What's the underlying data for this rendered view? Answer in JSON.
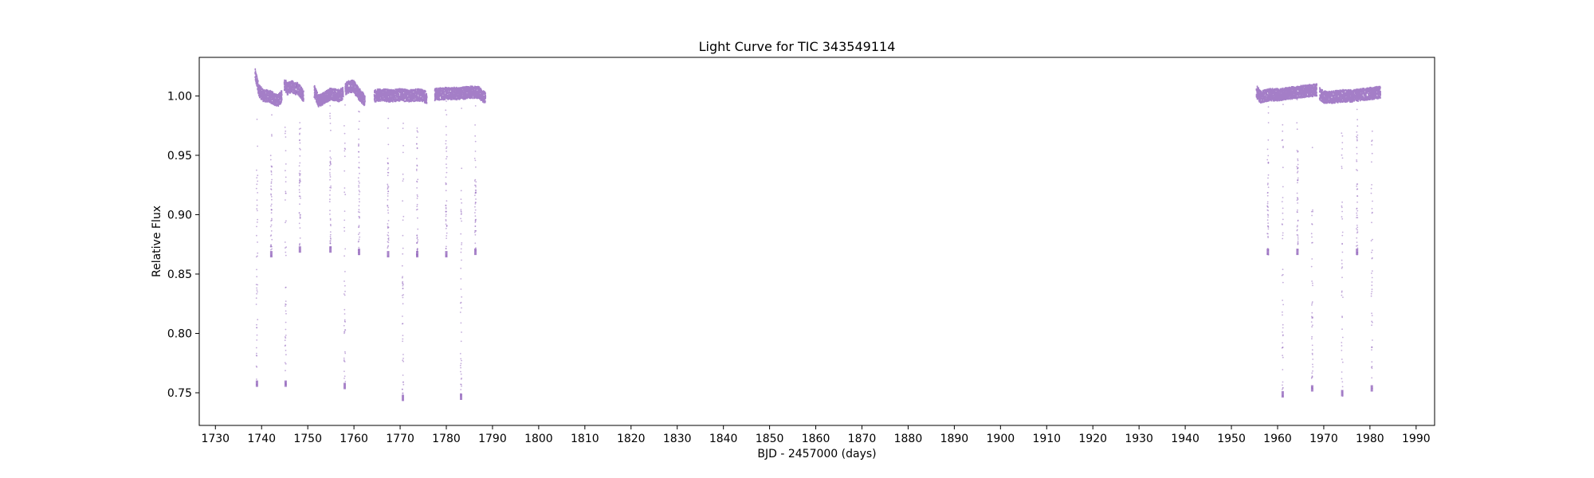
{
  "chart_data": {
    "type": "scatter",
    "title": "Light Curve for TIC 343549114",
    "xlabel": "BJD - 2457000 (days)",
    "ylabel": "Relative Flux",
    "xlim": [
      1726.5,
      1994
    ],
    "ylim": [
      0.7225,
      1.0325
    ],
    "xticks": [
      1730,
      1740,
      1750,
      1760,
      1770,
      1780,
      1790,
      1800,
      1810,
      1820,
      1830,
      1840,
      1850,
      1860,
      1870,
      1880,
      1890,
      1900,
      1910,
      1920,
      1930,
      1940,
      1950,
      1960,
      1970,
      1980,
      1990
    ],
    "yticks": [
      0.75,
      0.8,
      0.85,
      0.9,
      0.95,
      1.0
    ],
    "yticklabels": [
      "0.75",
      "0.80",
      "0.85",
      "0.90",
      "0.95",
      "1.00"
    ],
    "grid": false,
    "legend": "none",
    "marker_color": "#9467bd",
    "series": [
      {
        "segments": [
          {
            "x": [
              1738.6,
              1739.5,
              1740.5,
              1741.5,
              1742.5,
              1743.5,
              1744.4
            ],
            "y": [
              1.018,
              1.004,
              1.0,
              1.0,
              0.998,
              0.996,
              1.0
            ]
          },
          {
            "x": [
              1744.9,
              1745.6,
              1746.6,
              1747.5
            ],
            "y": [
              1.01,
              1.006,
              1.008,
              1.006
            ]
          },
          {
            "x": [
              1747.6,
              1748.3,
              1749.1
            ],
            "y": [
              1.008,
              1.004,
              1.0
            ]
          },
          {
            "x": [
              1751.4,
              1752.3,
              1753.5,
              1755.0,
              1756.5,
              1757.7
            ],
            "y": [
              1.004,
              0.996,
              0.998,
              1.002,
              1.0,
              1.002
            ]
          },
          {
            "x": [
              1758.1,
              1759.0,
              1760.0,
              1761.0,
              1762.4
            ],
            "y": [
              1.006,
              1.008,
              1.008,
              1.002,
              0.996
            ]
          },
          {
            "x": [
              1764.4,
              1766.0,
              1768.0,
              1770.0,
              1772.0,
              1774.0,
              1775.8
            ],
            "y": [
              1.0,
              1.001,
              1.0,
              1.001,
              1.0,
              1.001,
              0.999
            ]
          },
          {
            "x": [
              1777.5,
              1779.0,
              1781.0,
              1783.0,
              1785.0,
              1787.0,
              1788.5
            ],
            "y": [
              1.001,
              1.002,
              1.002,
              1.002,
              1.003,
              1.003,
              0.998
            ]
          },
          {
            "x": [
              1955.4,
              1956.3,
              1957.0,
              1958.5,
              1960.0,
              1962.0,
              1964.0,
              1966.0,
              1968.5
            ],
            "y": [
              1.004,
              0.999,
              1.0,
              1.001,
              1.001,
              1.002,
              1.003,
              1.004,
              1.005
            ]
          },
          {
            "x": [
              1969.1,
              1970.0,
              1972.0,
              1974.0,
              1976.0,
              1978.0,
              1980.0,
              1982.3
            ],
            "y": [
              1.002,
              0.999,
              0.999,
              1.0,
              1.0,
              1.001,
              1.002,
              1.003
            ]
          }
        ],
        "dips": [
          {
            "x": 1739.0,
            "depth": 0.755
          },
          {
            "x": 1742.1,
            "depth": 0.864
          },
          {
            "x": 1745.2,
            "depth": 0.755
          },
          {
            "x": 1748.3,
            "depth": 0.868
          },
          {
            "x": 1754.9,
            "depth": 0.868
          },
          {
            "x": 1758.0,
            "depth": 0.753
          },
          {
            "x": 1761.1,
            "depth": 0.866
          },
          {
            "x": 1767.4,
            "depth": 0.864
          },
          {
            "x": 1770.6,
            "depth": 0.743
          },
          {
            "x": 1773.7,
            "depth": 0.864
          },
          {
            "x": 1780.0,
            "depth": 0.864
          },
          {
            "x": 1783.2,
            "depth": 0.744
          },
          {
            "x": 1786.3,
            "depth": 0.866
          },
          {
            "x": 1957.9,
            "depth": 0.866
          },
          {
            "x": 1961.1,
            "depth": 0.746
          },
          {
            "x": 1964.3,
            "depth": 0.866
          },
          {
            "x": 1967.5,
            "depth": 0.751
          },
          {
            "x": 1974.0,
            "depth": 0.747
          },
          {
            "x": 1977.2,
            "depth": 0.866
          },
          {
            "x": 1980.4,
            "depth": 0.751
          }
        ]
      }
    ]
  }
}
